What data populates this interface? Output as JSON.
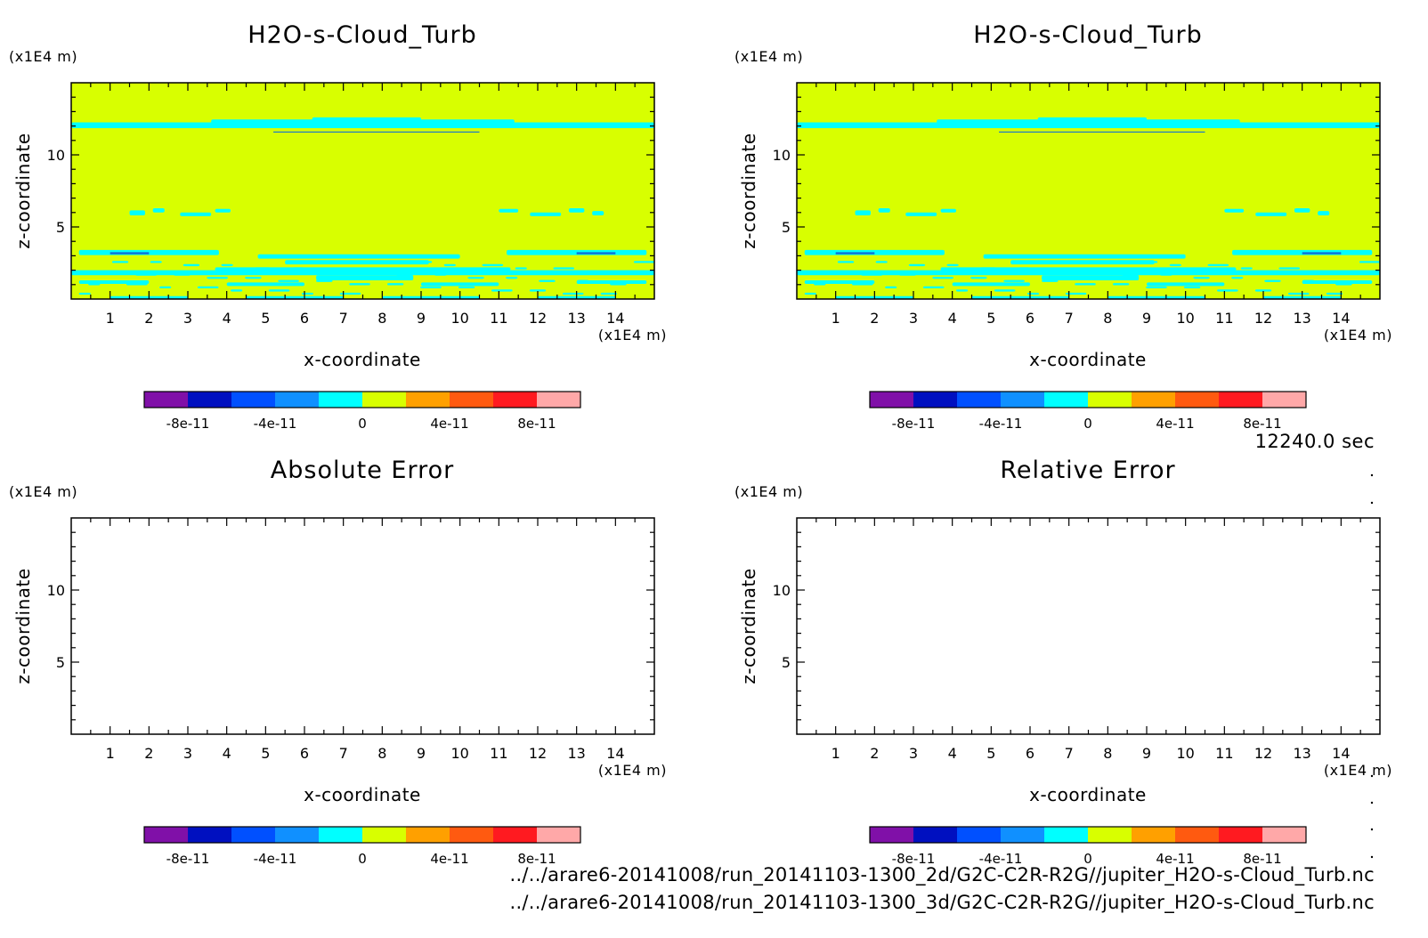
{
  "chart_data": [
    {
      "type": "heatmap",
      "title": "H2O-s-Cloud_Turb",
      "xlabel": "x-coordinate",
      "ylabel": "z-coordinate",
      "x_unit": "(x1E4 m)",
      "y_unit": "(x1E4 m)",
      "xlim": [
        0,
        15
      ],
      "ylim": [
        0,
        15
      ],
      "x_ticks": [
        "1",
        "2",
        "3",
        "4",
        "5",
        "6",
        "7",
        "8",
        "9",
        "10",
        "11",
        "12",
        "13",
        "14"
      ],
      "y_ticks": [
        "5",
        "10"
      ],
      "field": "mostly 0 to 4e-11 (yellow-green) with thin bands of -2e-11 to 0 (cyan) near z = 12, z = 6 and z = 0 to 3.5",
      "colorbar": {
        "levels": [
          -1e-10,
          -8e-11,
          -6e-11,
          -4e-11,
          -2e-11,
          0,
          2e-11,
          4e-11,
          6e-11,
          8e-11,
          1e-10
        ],
        "colors": [
          "#8010a8",
          "#0010c0",
          "#0050ff",
          "#1090ff",
          "#00ffff",
          "#d8ff00",
          "#ffa000",
          "#ff5a10",
          "#ff1a20",
          "#ffa8a8"
        ],
        "tick_labels": [
          "-8e-11",
          "-4e-11",
          "0",
          "4e-11",
          "8e-11"
        ]
      }
    },
    {
      "type": "heatmap",
      "title": "H2O-s-Cloud_Turb",
      "xlabel": "x-coordinate",
      "ylabel": "z-coordinate",
      "x_unit": "(x1E4 m)",
      "y_unit": "(x1E4 m)",
      "xlim": [
        0,
        15
      ],
      "ylim": [
        0,
        15
      ],
      "x_ticks": [
        "1",
        "2",
        "3",
        "4",
        "5",
        "6",
        "7",
        "8",
        "9",
        "10",
        "11",
        "12",
        "13",
        "14"
      ],
      "y_ticks": [
        "5",
        "10"
      ],
      "field": "identical to left panel",
      "colorbar": {
        "levels": [
          -1e-10,
          -8e-11,
          -6e-11,
          -4e-11,
          -2e-11,
          0,
          2e-11,
          4e-11,
          6e-11,
          8e-11,
          1e-10
        ],
        "colors": [
          "#8010a8",
          "#0010c0",
          "#0050ff",
          "#1090ff",
          "#00ffff",
          "#d8ff00",
          "#ffa000",
          "#ff5a10",
          "#ff1a20",
          "#ffa8a8"
        ],
        "tick_labels": [
          "-8e-11",
          "-4e-11",
          "0",
          "4e-11",
          "8e-11"
        ]
      }
    },
    {
      "type": "heatmap",
      "title": "Absolute Error",
      "xlabel": "x-coordinate",
      "ylabel": "z-coordinate",
      "x_unit": "(x1E4 m)",
      "y_unit": "(x1E4 m)",
      "xlim": [
        0,
        15
      ],
      "ylim": [
        0,
        15
      ],
      "x_ticks": [
        "1",
        "2",
        "3",
        "4",
        "5",
        "6",
        "7",
        "8",
        "9",
        "10",
        "11",
        "12",
        "13",
        "14"
      ],
      "y_ticks": [
        "5",
        "10"
      ],
      "field": "empty",
      "colorbar": {
        "levels": [
          -1e-10,
          -8e-11,
          -6e-11,
          -4e-11,
          -2e-11,
          0,
          2e-11,
          4e-11,
          6e-11,
          8e-11,
          1e-10
        ],
        "colors": [
          "#8010a8",
          "#0010c0",
          "#0050ff",
          "#1090ff",
          "#00ffff",
          "#d8ff00",
          "#ffa000",
          "#ff5a10",
          "#ff1a20",
          "#ffa8a8"
        ],
        "tick_labels": [
          "-8e-11",
          "-4e-11",
          "0",
          "4e-11",
          "8e-11"
        ]
      }
    },
    {
      "type": "heatmap",
      "title": "Relative Error",
      "xlabel": "x-coordinate",
      "ylabel": "z-coordinate",
      "x_unit": "(x1E4 m)",
      "y_unit": "(x1E4 m)",
      "xlim": [
        0,
        15
      ],
      "ylim": [
        0,
        15
      ],
      "x_ticks": [
        "1",
        "2",
        "3",
        "4",
        "5",
        "6",
        "7",
        "8",
        "9",
        "10",
        "11",
        "12",
        "13",
        "14"
      ],
      "y_ticks": [
        "5",
        "10"
      ],
      "field": "empty",
      "colorbar": {
        "levels": [
          -1e-10,
          -8e-11,
          -6e-11,
          -4e-11,
          -2e-11,
          0,
          2e-11,
          4e-11,
          6e-11,
          8e-11,
          1e-10
        ],
        "colors": [
          "#8010a8",
          "#0010c0",
          "#0050ff",
          "#1090ff",
          "#00ffff",
          "#d8ff00",
          "#ffa000",
          "#ff5a10",
          "#ff1a20",
          "#ffa8a8"
        ],
        "tick_labels": [
          "-8e-11",
          "-4e-11",
          "0",
          "4e-11",
          "8e-11"
        ]
      }
    }
  ],
  "time_label": "12240.0 sec",
  "file_paths": [
    "../../arare6-20141008/run_20141103-1300_2d/G2C-C2R-R2G//jupiter_H2O-s-Cloud_Turb.nc",
    "../../arare6-20141008/run_20141103-1300_3d/G2C-C2R-R2G//jupiter_H2O-s-Cloud_Turb.nc"
  ],
  "colors": {
    "field_base": "#d8ff00",
    "field_band": "#00ffff",
    "band_dark": "#1070d8"
  }
}
